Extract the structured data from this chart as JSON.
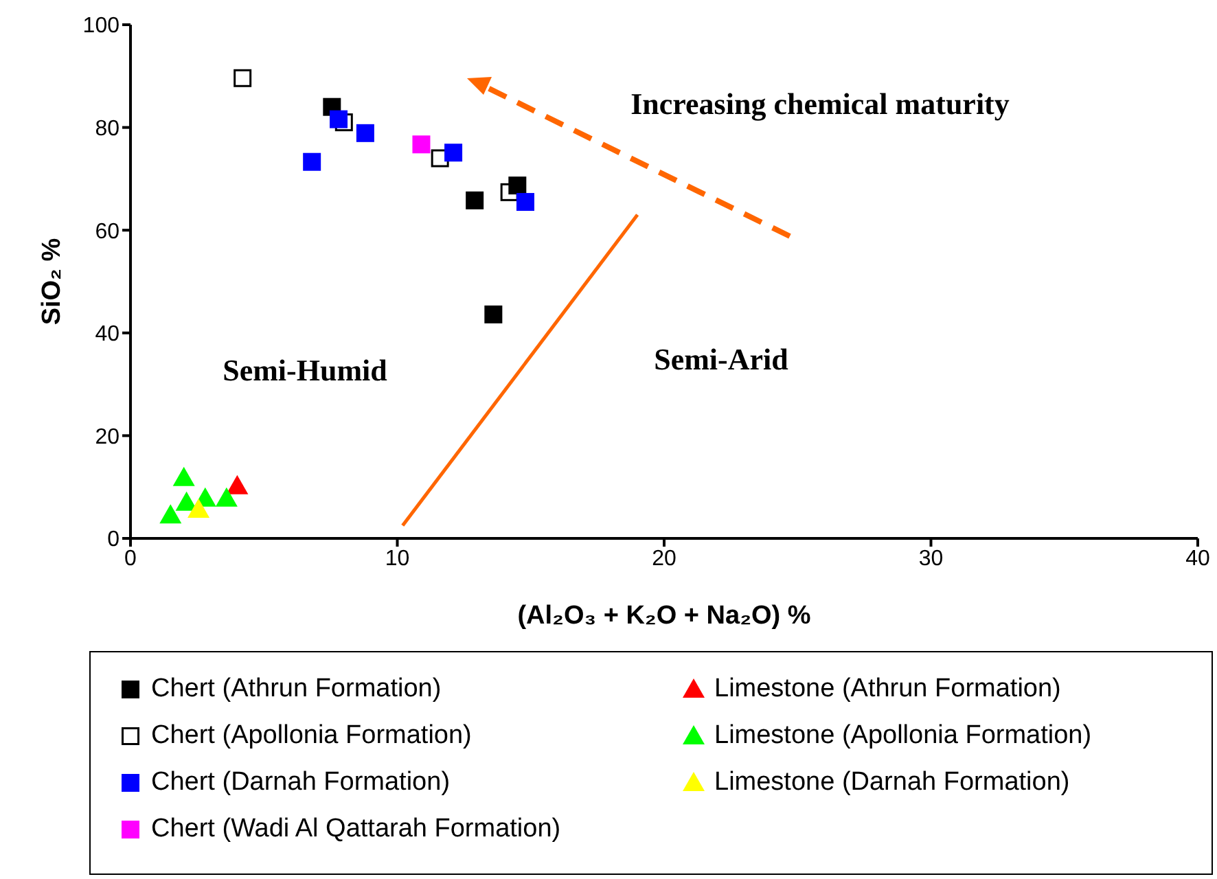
{
  "chart_data": {
    "type": "scatter",
    "xlabel": "(Al₂O₃ + K₂O + Na₂O) %",
    "ylabel": "SiO₂ %",
    "xlim": [
      0,
      40
    ],
    "xticks": [
      0,
      10,
      20,
      30,
      40
    ],
    "ylim": [
      0,
      100
    ],
    "yticks": [
      0,
      20,
      40,
      60,
      80,
      100
    ],
    "grid": false,
    "legend": "bottom",
    "series": [
      {
        "name": "Chert (Athrun Formation)",
        "color": "#000000",
        "marker": "square",
        "x": [
          7.55,
          12.9,
          14.5,
          13.6
        ],
        "values": [
          84,
          65.8,
          68.7,
          43.6
        ]
      },
      {
        "name": "Chert (Apollonia Formation)",
        "color": "#000000",
        "marker": "square-open",
        "x": [
          4.2,
          8.0,
          11.6,
          14.2
        ],
        "values": [
          89.6,
          81,
          74,
          67.4
        ]
      },
      {
        "name": "Chert (Darnah Formation)",
        "color": "#0000ff",
        "marker": "square",
        "x": [
          6.8,
          7.8,
          8.8,
          12.1,
          14.8
        ],
        "values": [
          73.3,
          81.6,
          78.9,
          75.1,
          65.5
        ]
      },
      {
        "name": "Chert (Wadi Al Qattarah Formation)",
        "color": "#ff00ff",
        "marker": "square",
        "x": [
          10.9
        ],
        "values": [
          76.7
        ]
      },
      {
        "name": "Limestone (Athrun Formation)",
        "color": "#ff0000",
        "marker": "triangle",
        "x": [
          4.0
        ],
        "values": [
          10.2
        ]
      },
      {
        "name": "Limestone (Apollonia Formation)",
        "color": "#00ff00",
        "marker": "triangle",
        "x": [
          2.0,
          1.5,
          2.1,
          2.8,
          3.6
        ],
        "values": [
          11.8,
          4.5,
          7,
          7.8,
          7.8
        ]
      },
      {
        "name": "Limestone (Darnah Formation)",
        "color": "#ffff00",
        "marker": "triangle",
        "x": [
          2.55
        ],
        "values": [
          5.6
        ]
      },
      {
        "type": "line",
        "color": "#ff6600",
        "line_style": "solid",
        "marker": "none",
        "x": [
          10.2,
          19
        ],
        "values": [
          2.5,
          63
        ]
      }
    ],
    "annotations": [
      "Increasing chemical maturity",
      "Semi-Humid",
      "Semi-Arid"
    ]
  }
}
